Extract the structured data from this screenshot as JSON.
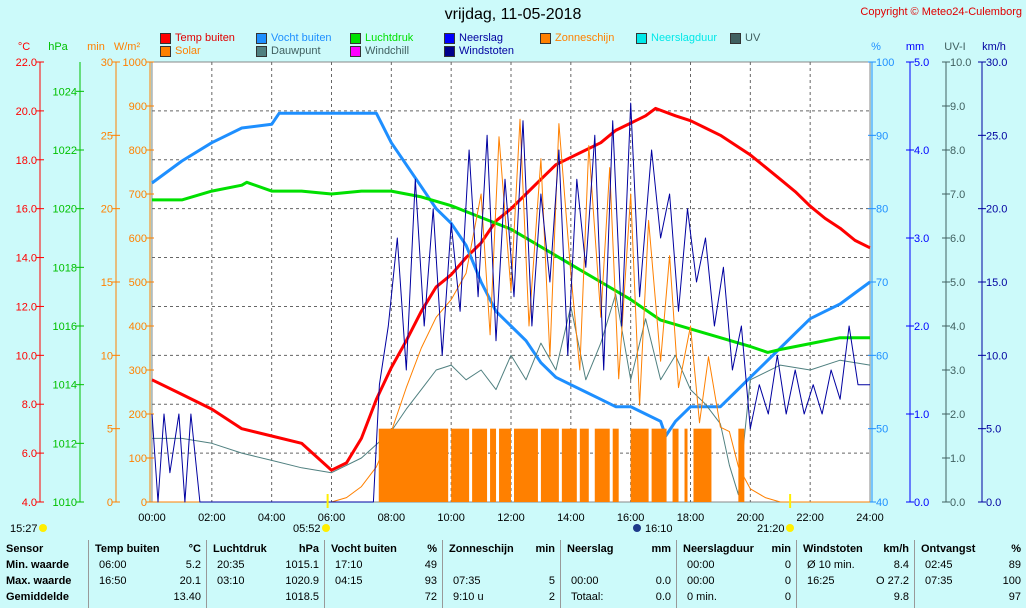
{
  "title": "vrijdag, 11-05-2018",
  "copyright": "Copyright © Meteo24-Culemborg",
  "legend": [
    {
      "label": "Temp buiten",
      "color": "#ff0000"
    },
    {
      "label": "Vocht buiten",
      "color": "#1e8fff"
    },
    {
      "label": "Luchtdruk",
      "color": "#00e000"
    },
    {
      "label": "Neerslag",
      "color": "#0000ff"
    },
    {
      "label": "Zonneschijn",
      "color": "#ff8000"
    },
    {
      "label": "Neerslagduur",
      "color": "#00e8e8"
    },
    {
      "label": "UV",
      "color": "#406060"
    },
    {
      "label": "Solar",
      "color": "#ff8000"
    },
    {
      "label": "Dauwpunt",
      "color": "#508080"
    },
    {
      "label": "Windchill",
      "color": "#ff00ff"
    },
    {
      "label": "Windstoten",
      "color": "#00008b"
    }
  ],
  "axis_units": {
    "temp": "°C",
    "hpa": "hPa",
    "min": "min",
    "wm2": "W/m²",
    "pct": "%",
    "mm": "mm",
    "uv": "UV-I",
    "kmh": "km/h"
  },
  "markers": [
    {
      "time": "15:27",
      "kind": "moonset"
    },
    {
      "time": "05:52",
      "kind": "sunrise"
    },
    {
      "time": "16:10",
      "kind": "moonrise"
    },
    {
      "time": "21:20",
      "kind": "sunset"
    }
  ],
  "chart_data": {
    "type": "line",
    "title": "vrijdag, 11-05-2018",
    "x_ticks": [
      "00:00",
      "02:00",
      "04:00",
      "06:00",
      "08:00",
      "10:00",
      "12:00",
      "14:00",
      "16:00",
      "18:00",
      "20:00",
      "22:00",
      "24:00"
    ],
    "axes": {
      "temp": [
        4,
        22
      ],
      "hpa": [
        1010,
        1025
      ],
      "min": [
        0,
        30
      ],
      "wm2": [
        0,
        1000
      ],
      "pct": [
        40,
        100
      ],
      "mm": [
        0,
        5
      ],
      "uv": [
        0,
        10
      ],
      "kmh": [
        0,
        30
      ]
    },
    "series": [
      {
        "name": "Temp buiten",
        "axis": "temp",
        "color": "#ff0000",
        "width": 3,
        "x": [
          0,
          1,
          2,
          3,
          4,
          5,
          6,
          6.5,
          7,
          7.5,
          8,
          8.5,
          9,
          9.5,
          10,
          10.5,
          11,
          11.5,
          12,
          12.5,
          13,
          13.5,
          14,
          14.5,
          15,
          15.5,
          16,
          16.5,
          16.83,
          17.5,
          18,
          18.5,
          19,
          19.5,
          20,
          20.5,
          21,
          21.5,
          22,
          22.5,
          23,
          23.5,
          24
        ],
        "y": [
          9.0,
          8.4,
          7.8,
          7.0,
          6.7,
          6.4,
          5.3,
          5.6,
          6.6,
          8.2,
          9.5,
          10.6,
          11.8,
          12.8,
          13.3,
          14.0,
          14.6,
          15.5,
          16.0,
          16.6,
          17.2,
          17.8,
          18.1,
          18.4,
          18.7,
          19.2,
          19.5,
          19.8,
          20.1,
          19.8,
          19.6,
          19.3,
          19.0,
          18.6,
          18.2,
          17.7,
          17.2,
          16.7,
          16.1,
          15.6,
          15.2,
          14.7,
          14.4
        ]
      },
      {
        "name": "Vocht buiten",
        "axis": "pct",
        "color": "#1e8fff",
        "width": 3,
        "x": [
          0,
          1,
          2,
          3,
          4,
          4.25,
          5,
          6,
          7,
          7.5,
          8,
          8.5,
          9,
          9.5,
          10,
          10.5,
          11,
          11.5,
          12,
          12.5,
          13,
          13.5,
          14,
          14.5,
          15,
          15.5,
          16,
          16.5,
          17,
          17.17,
          17.5,
          18,
          18.5,
          19,
          19.5,
          20,
          20.5,
          21,
          21.5,
          22,
          22.5,
          23,
          23.5,
          24
        ],
        "y": [
          83.5,
          86.5,
          89,
          91,
          91.5,
          93,
          93,
          93,
          93,
          93,
          89,
          86,
          83,
          80,
          78,
          75,
          70,
          66,
          64,
          62,
          59,
          57,
          56,
          55,
          54,
          53,
          53,
          52,
          51,
          49,
          51,
          53,
          53,
          53,
          55,
          57,
          59,
          61,
          63,
          65,
          66,
          67,
          68.5,
          70
        ]
      },
      {
        "name": "Luchtdruk",
        "axis": "hpa",
        "color": "#00e000",
        "width": 3,
        "x": [
          0,
          1,
          2,
          3,
          3.17,
          4,
          5,
          6,
          7,
          8,
          9,
          10,
          11,
          12,
          13,
          14,
          15,
          16,
          17,
          18,
          19,
          20,
          20.58,
          21,
          22,
          23,
          24
        ],
        "y": [
          1020.3,
          1020.3,
          1020.6,
          1020.8,
          1020.9,
          1020.6,
          1020.6,
          1020.5,
          1020.6,
          1020.6,
          1020.4,
          1020.1,
          1019.7,
          1019.3,
          1018.7,
          1018.1,
          1017.5,
          1016.9,
          1016.2,
          1015.9,
          1015.6,
          1015.3,
          1015.1,
          1015.2,
          1015.4,
          1015.6,
          1015.6
        ]
      },
      {
        "name": "Dauwpunt",
        "axis": "temp",
        "color": "#508080",
        "width": 1,
        "x": [
          0,
          1,
          2,
          3,
          4,
          5,
          6,
          7,
          8,
          8.5,
          9,
          9.5,
          10,
          10.5,
          11,
          11.5,
          12,
          12.5,
          13,
          13.5,
          14,
          14.5,
          15,
          15.5,
          16,
          16.5,
          17,
          17.5,
          18,
          18.5,
          19,
          19.3,
          19.6,
          20,
          21,
          22,
          23,
          24
        ],
        "y": [
          6.6,
          6.6,
          6.4,
          6.0,
          5.7,
          5.4,
          5.2,
          5.8,
          6.9,
          7.8,
          8.6,
          9.4,
          9.6,
          9.0,
          9.4,
          8.6,
          10.0,
          9.0,
          10.5,
          9.4,
          12.0,
          9.0,
          10.5,
          12.5,
          9.0,
          11.5,
          9.0,
          10.0,
          8.6,
          8.0,
          7.2,
          5.5,
          4.3,
          9.0,
          9.6,
          9.4,
          9.8,
          9.6
        ]
      },
      {
        "name": "Solar",
        "axis": "wm2",
        "color": "#ff8000",
        "width": 1,
        "x": [
          0,
          6,
          6.5,
          7,
          7.5,
          8,
          8.5,
          9,
          9.5,
          10,
          10.5,
          11,
          11.3,
          11.6,
          12,
          12.3,
          12.6,
          13,
          13.3,
          13.6,
          14,
          14.3,
          14.6,
          15,
          15.3,
          15.6,
          16,
          16.3,
          16.6,
          17,
          17.3,
          17.6,
          18,
          18.3,
          18.6,
          19,
          19.3,
          19.6,
          20,
          20.5,
          21,
          24
        ],
        "y": [
          0,
          0,
          10,
          35,
          80,
          160,
          260,
          350,
          420,
          460,
          520,
          700,
          380,
          830,
          480,
          870,
          400,
          780,
          330,
          860,
          520,
          300,
          810,
          420,
          760,
          280,
          700,
          220,
          640,
          320,
          560,
          260,
          400,
          180,
          330,
          170,
          160,
          80,
          30,
          10,
          0,
          0
        ]
      },
      {
        "name": "Windstoten",
        "axis": "kmh",
        "color": "#0000a0",
        "width": 1,
        "x": [
          0,
          0.2,
          0.4,
          0.6,
          0.9,
          1.1,
          1.3,
          1.6,
          2,
          7.4,
          7.6,
          7.9,
          8.2,
          8.5,
          8.8,
          9.1,
          9.4,
          9.7,
          10,
          10.3,
          10.6,
          10.9,
          11.2,
          11.5,
          11.8,
          12.1,
          12.4,
          12.7,
          13,
          13.3,
          13.6,
          13.9,
          14.2,
          14.5,
          14.8,
          15.1,
          15.4,
          15.7,
          16,
          16.3,
          16.7,
          17,
          17.3,
          17.6,
          17.9,
          18.2,
          18.5,
          18.8,
          19.1,
          19.4,
          19.7,
          20,
          20.3,
          20.6,
          20.9,
          21.2,
          21.5,
          21.8,
          22.1,
          22.4,
          22.7,
          23,
          23.3,
          23.6,
          24
        ],
        "y": [
          6,
          0,
          6,
          2,
          6,
          0,
          6,
          0,
          0,
          0,
          8,
          12,
          18,
          9,
          22,
          12,
          20,
          10,
          19,
          13,
          24,
          14,
          25,
          11,
          22,
          14,
          26,
          12,
          21,
          15,
          24,
          10,
          22,
          16,
          25,
          9,
          26,
          12,
          27.2,
          14,
          24,
          18,
          21,
          13,
          20,
          15,
          18,
          12,
          16,
          9,
          12,
          5,
          8,
          6,
          10,
          6,
          9,
          6,
          8,
          6,
          9,
          7,
          12,
          8,
          8
        ]
      },
      {
        "name": "Zonneschijn",
        "axis": "min",
        "color": "#ff8000",
        "type": "bar",
        "intervals": [
          [
            7.58,
            9.9
          ],
          [
            10,
            10.6
          ],
          [
            10.7,
            11.2
          ],
          [
            11.3,
            11.5
          ],
          [
            11.6,
            12.0
          ],
          [
            12.1,
            12.9
          ],
          [
            13.0,
            13.6
          ],
          [
            13.7,
            14.2
          ],
          [
            14.3,
            14.6
          ],
          [
            14.8,
            15.3
          ],
          [
            15.4,
            15.6
          ],
          [
            16.0,
            16.6
          ],
          [
            16.7,
            17.2
          ],
          [
            17.4,
            17.6
          ],
          [
            17.8,
            17.9
          ],
          [
            18.1,
            18.7
          ],
          [
            19.6,
            19.8
          ]
        ],
        "value": 5
      }
    ]
  },
  "table": {
    "columns": [
      {
        "header": "Sensor",
        "unit": "",
        "rows": [
          [
            "Min. waarde",
            ""
          ],
          [
            "Max. waarde",
            ""
          ],
          [
            "Gemiddelde",
            ""
          ]
        ]
      },
      {
        "header": "Temp buiten",
        "unit": "°C",
        "rows": [
          [
            "06:00",
            "5.2"
          ],
          [
            "16:50",
            "20.1"
          ],
          [
            "",
            "13.40"
          ]
        ]
      },
      {
        "header": "Luchtdruk",
        "unit": "hPa",
        "rows": [
          [
            "20:35",
            "1015.1"
          ],
          [
            "03:10",
            "1020.9"
          ],
          [
            "",
            "1018.5"
          ]
        ]
      },
      {
        "header": "Vocht buiten",
        "unit": "%",
        "rows": [
          [
            "17:10",
            "49"
          ],
          [
            "04:15",
            "93"
          ],
          [
            "",
            "72"
          ]
        ]
      },
      {
        "header": "Zonneschijn",
        "unit": "min",
        "rows": [
          [
            "",
            ""
          ],
          [
            "07:35",
            "5"
          ],
          [
            "9:10 u",
            "2"
          ]
        ]
      },
      {
        "header": "Neerslag",
        "unit": "mm",
        "rows": [
          [
            "",
            ""
          ],
          [
            "00:00",
            "0.0"
          ],
          [
            "Totaal:",
            "0.0"
          ]
        ]
      },
      {
        "header": "Neerslagduur",
        "unit": "min",
        "rows": [
          [
            "00:00",
            "0"
          ],
          [
            "00:00",
            "0"
          ],
          [
            "0 min.",
            "0"
          ]
        ]
      },
      {
        "header": "Windstoten",
        "unit": "km/h",
        "rows": [
          [
            "Ø 10 min.",
            "8.4"
          ],
          [
            "16:25",
            "O 27.2"
          ],
          [
            "",
            "9.8"
          ]
        ]
      },
      {
        "header": "Ontvangst",
        "unit": "%",
        "rows": [
          [
            "02:45",
            "89"
          ],
          [
            "07:35",
            "100"
          ],
          [
            "",
            "97"
          ]
        ]
      }
    ]
  }
}
